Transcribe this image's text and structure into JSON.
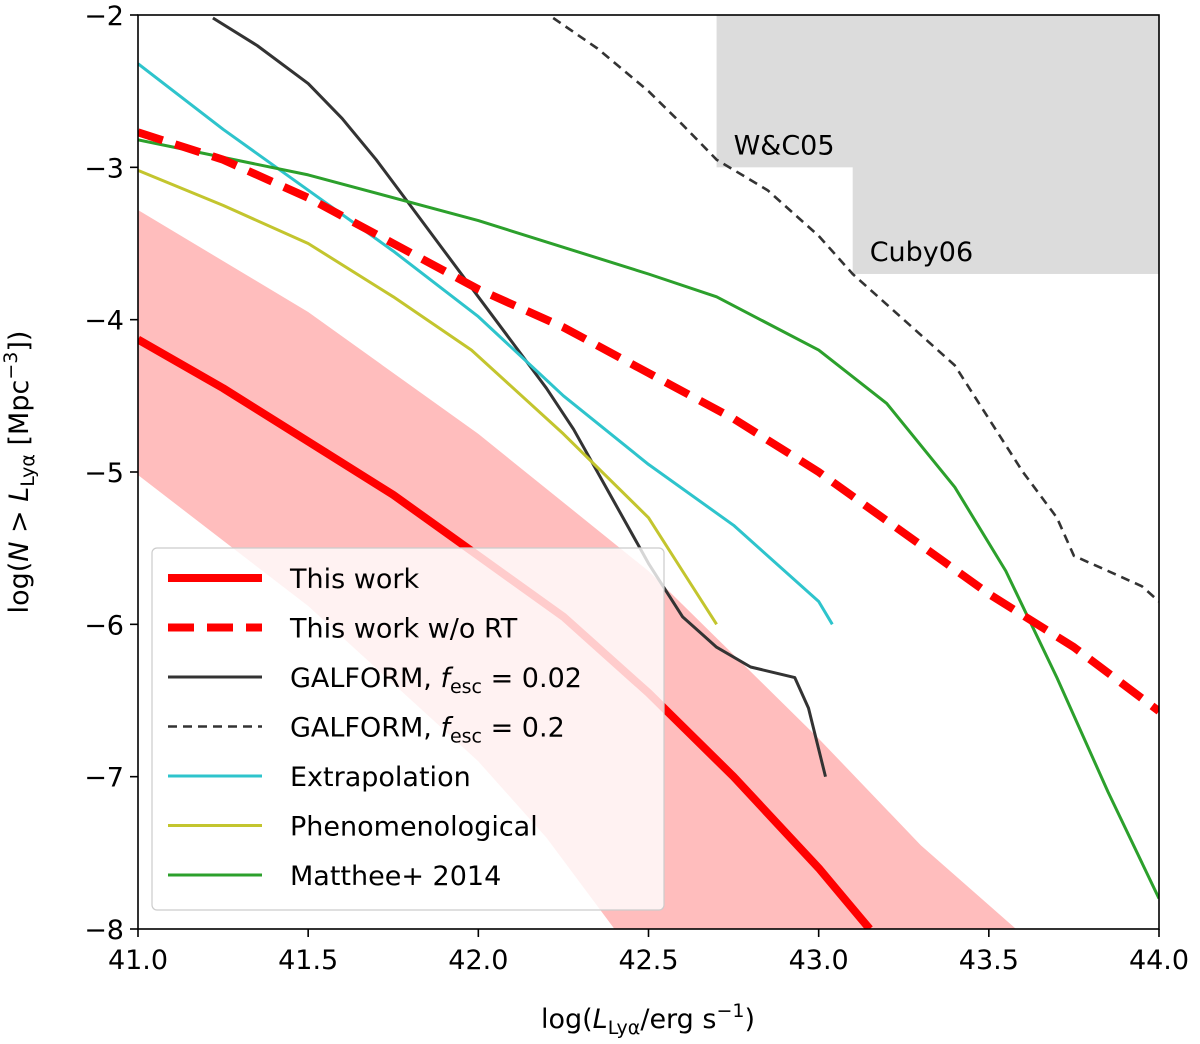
{
  "chart_data": {
    "type": "line",
    "title": "",
    "xlabel": "log(L_Lyα/erg s^-1)",
    "ylabel": "log(N > L_Lyα [Mpc^-3])",
    "xlim": [
      41.0,
      44.0
    ],
    "ylim": [
      -8,
      -2
    ],
    "xticks": [
      41.0,
      41.5,
      42.0,
      42.5,
      43.0,
      43.5,
      44.0
    ],
    "xtick_labels": [
      "41.0",
      "41.5",
      "42.0",
      "42.5",
      "43.0",
      "43.5",
      "44.0"
    ],
    "yticks": [
      -8,
      -7,
      -6,
      -5,
      -4,
      -3,
      -2
    ],
    "ytick_labels": [
      "−8",
      "−7",
      "−6",
      "−5",
      "−4",
      "−3",
      "−2"
    ],
    "grid": false,
    "legend_position": "lower-left",
    "shaded_regions": [
      {
        "name": "W&C05",
        "x": [
          42.7,
          44.0
        ],
        "y": [
          -3.0,
          -2.0
        ],
        "color": "#dcdcdc"
      },
      {
        "name": "Cuby06",
        "x": [
          43.1,
          44.0
        ],
        "y": [
          -3.7,
          -2.0
        ],
        "color": "#dcdcdc"
      }
    ],
    "uncertainty_band": {
      "name": "This work range",
      "color": "#ffbdbd",
      "upper": {
        "x": [
          41.0,
          41.5,
          42.0,
          42.5,
          43.0,
          43.3,
          43.58
        ],
        "y": [
          -3.28,
          -3.95,
          -4.75,
          -5.65,
          -6.75,
          -7.45,
          -8.0
        ]
      },
      "lower": {
        "x": [
          41.0,
          41.5,
          42.0,
          42.2,
          42.4
        ],
        "y": [
          -5.02,
          -5.88,
          -6.9,
          -7.4,
          -8.0
        ]
      }
    },
    "series": [
      {
        "name": "This work",
        "style": "solid-thick",
        "color": "#ff0000",
        "x": [
          41.0,
          41.25,
          41.5,
          41.75,
          42.0,
          42.25,
          42.5,
          42.75,
          43.0,
          43.15
        ],
        "y": [
          -4.13,
          -4.45,
          -4.8,
          -5.15,
          -5.55,
          -5.95,
          -6.45,
          -7.0,
          -7.6,
          -8.0
        ]
      },
      {
        "name": "This work w/o RT",
        "style": "dashed-thick",
        "color": "#ff0000",
        "x": [
          41.0,
          41.25,
          41.5,
          41.75,
          42.0,
          42.25,
          42.5,
          42.75,
          43.0,
          43.25,
          43.5,
          43.75,
          44.0
        ],
        "y": [
          -2.77,
          -2.95,
          -3.2,
          -3.5,
          -3.8,
          -4.05,
          -4.35,
          -4.65,
          -5.0,
          -5.4,
          -5.8,
          -6.15,
          -6.57
        ]
      },
      {
        "name": "GALFORM, f_esc = 0.02",
        "style": "solid",
        "color": "#333333",
        "x": [
          41.22,
          41.35,
          41.5,
          41.6,
          41.7,
          41.8,
          41.9,
          42.0,
          42.1,
          42.2,
          42.28,
          42.4,
          42.5,
          42.6,
          42.7,
          42.8,
          42.93,
          42.97,
          43.02
        ],
        "y": [
          -2.02,
          -2.2,
          -2.45,
          -2.68,
          -2.95,
          -3.25,
          -3.55,
          -3.85,
          -4.15,
          -4.45,
          -4.72,
          -5.2,
          -5.6,
          -5.95,
          -6.15,
          -6.28,
          -6.35,
          -6.55,
          -7.0
        ]
      },
      {
        "name": "GALFORM, f_esc = 0.2",
        "style": "dashed",
        "color": "#333333",
        "x": [
          42.22,
          42.35,
          42.5,
          42.6,
          42.7,
          42.85,
          43.0,
          43.1,
          43.25,
          43.4,
          43.5,
          43.6,
          43.7,
          43.75,
          43.85,
          43.95,
          44.0
        ],
        "y": [
          -2.02,
          -2.22,
          -2.5,
          -2.72,
          -2.95,
          -3.15,
          -3.45,
          -3.7,
          -4.0,
          -4.3,
          -4.65,
          -5.0,
          -5.3,
          -5.55,
          -5.65,
          -5.75,
          -5.85
        ]
      },
      {
        "name": "Extrapolation",
        "style": "solid",
        "color": "#2ec4cc",
        "x": [
          41.0,
          41.25,
          41.5,
          41.75,
          42.0,
          42.25,
          42.5,
          42.75,
          43.0,
          43.04
        ],
        "y": [
          -2.32,
          -2.75,
          -3.15,
          -3.55,
          -3.98,
          -4.5,
          -4.95,
          -5.35,
          -5.85,
          -6.0
        ]
      },
      {
        "name": "Phenomenological",
        "style": "solid",
        "color": "#c3c52e",
        "x": [
          41.0,
          41.25,
          41.5,
          41.75,
          41.98,
          42.25,
          42.5,
          42.6,
          42.7
        ],
        "y": [
          -3.02,
          -3.25,
          -3.5,
          -3.85,
          -4.2,
          -4.75,
          -5.3,
          -5.65,
          -6.0
        ]
      },
      {
        "name": "Matthee+ 2014",
        "style": "solid",
        "color": "#2ca02c",
        "x": [
          41.0,
          41.5,
          42.0,
          42.5,
          42.7,
          43.0,
          43.2,
          43.4,
          43.55,
          43.7,
          43.85,
          44.0
        ],
        "y": [
          -2.82,
          -3.05,
          -3.35,
          -3.7,
          -3.85,
          -4.2,
          -4.55,
          -5.1,
          -5.65,
          -6.35,
          -7.1,
          -7.8
        ]
      }
    ],
    "annotations": [
      {
        "text": "W&C05",
        "x": 42.75,
        "y": -2.85
      },
      {
        "text": "Cuby06",
        "x": 43.15,
        "y": -3.55
      }
    ]
  },
  "legend": [
    {
      "label": "This work",
      "style": "solid-thick",
      "color": "#ff0000"
    },
    {
      "label": "This work w/o RT",
      "style": "dashed-thick",
      "color": "#ff0000"
    },
    {
      "label": "GALFORM, f_esc = 0.02",
      "style": "solid",
      "color": "#333333"
    },
    {
      "label": "GALFORM, f_esc = 0.2",
      "style": "dashed",
      "color": "#333333"
    },
    {
      "label": "Extrapolation",
      "style": "solid",
      "color": "#2ec4cc"
    },
    {
      "label": "Phenomenological",
      "style": "solid",
      "color": "#c3c52e"
    },
    {
      "label": "Matthee+ 2014",
      "style": "solid",
      "color": "#2ca02c"
    }
  ]
}
